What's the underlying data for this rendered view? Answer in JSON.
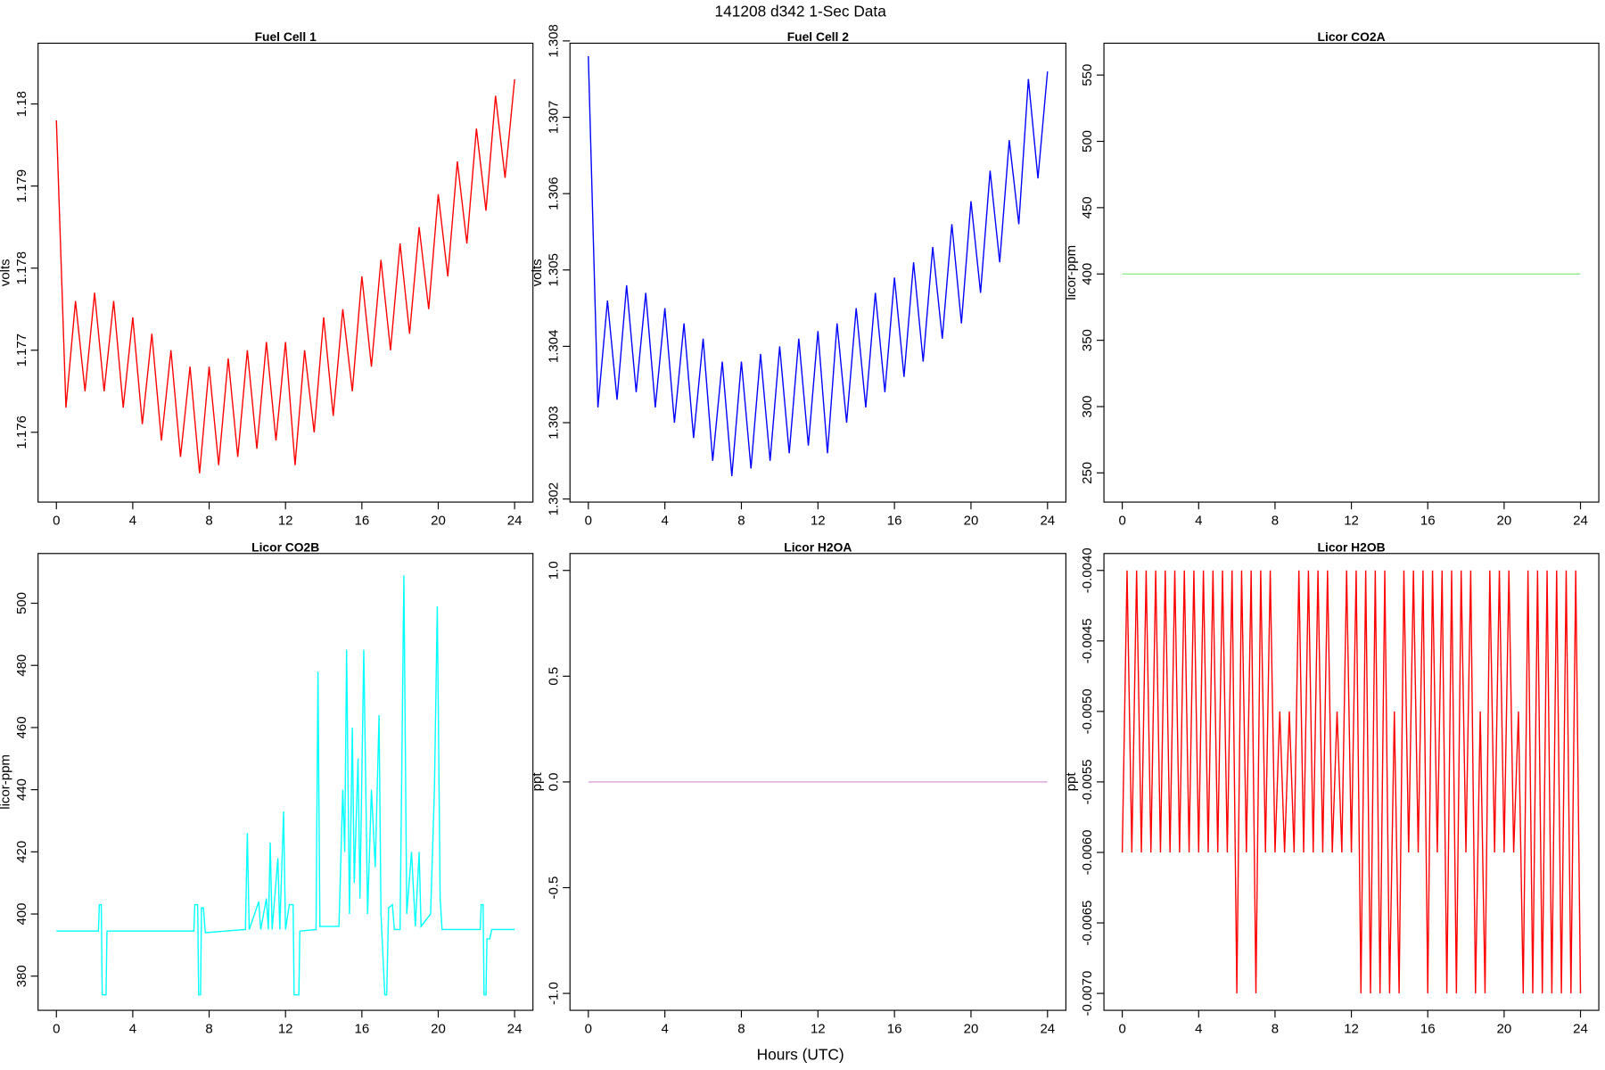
{
  "title": "141208   d342   1-Sec Data",
  "xlabel": "Hours (UTC)",
  "chart_data": [
    {
      "type": "line",
      "title": "Fuel Cell 1",
      "ylabel": "volts",
      "color": "#ff0000",
      "x": [
        0,
        0.5,
        1,
        1.5,
        2,
        2.5,
        3,
        3.5,
        4,
        4.5,
        5,
        5.5,
        6,
        6.5,
        7,
        7.5,
        8,
        8.5,
        9,
        9.5,
        10,
        10.5,
        11,
        11.5,
        12,
        12.5,
        13,
        13.5,
        14,
        14.5,
        15,
        15.5,
        16,
        16.5,
        17,
        17.5,
        18,
        18.5,
        19,
        19.5,
        20,
        20.5,
        21,
        21.5,
        22,
        22.5,
        23,
        23.5,
        24
      ],
      "values": [
        1.1798,
        1.1763,
        1.1776,
        1.1765,
        1.1777,
        1.1765,
        1.1776,
        1.1763,
        1.1774,
        1.1761,
        1.1772,
        1.1759,
        1.177,
        1.1757,
        1.1768,
        1.1755,
        1.1768,
        1.1756,
        1.1769,
        1.1757,
        1.177,
        1.1758,
        1.1771,
        1.1759,
        1.1771,
        1.1756,
        1.177,
        1.176,
        1.1774,
        1.1762,
        1.1775,
        1.1765,
        1.1779,
        1.1768,
        1.1781,
        1.177,
        1.1783,
        1.1772,
        1.1785,
        1.1775,
        1.1789,
        1.1779,
        1.1793,
        1.1783,
        1.1797,
        1.1787,
        1.1801,
        1.1791,
        1.1803
      ],
      "xlim": [
        -0.96,
        24.96
      ],
      "xticks": [
        0,
        4,
        8,
        12,
        16,
        20,
        24
      ],
      "ylim": [
        1.17515,
        1.18074
      ],
      "yticks": [
        1.176,
        1.177,
        1.178,
        1.179,
        1.18
      ]
    },
    {
      "type": "line",
      "title": "Fuel Cell 2",
      "ylabel": "volts",
      "color": "#0000ff",
      "x": [
        0,
        0.5,
        1,
        1.5,
        2,
        2.5,
        3,
        3.5,
        4,
        4.5,
        5,
        5.5,
        6,
        6.5,
        7,
        7.5,
        8,
        8.5,
        9,
        9.5,
        10,
        10.5,
        11,
        11.5,
        12,
        12.5,
        13,
        13.5,
        14,
        14.5,
        15,
        15.5,
        16,
        16.5,
        17,
        17.5,
        18,
        18.5,
        19,
        19.5,
        20,
        20.5,
        21,
        21.5,
        22,
        22.5,
        23,
        23.5,
        24
      ],
      "values": [
        1.3078,
        1.3032,
        1.3046,
        1.3033,
        1.3048,
        1.3034,
        1.3047,
        1.3032,
        1.3045,
        1.303,
        1.3043,
        1.3028,
        1.3041,
        1.3025,
        1.3038,
        1.3023,
        1.3038,
        1.3024,
        1.3039,
        1.3025,
        1.304,
        1.3026,
        1.3041,
        1.3027,
        1.3042,
        1.3026,
        1.3043,
        1.303,
        1.3045,
        1.3032,
        1.3047,
        1.3034,
        1.3049,
        1.3036,
        1.3051,
        1.3038,
        1.3053,
        1.3041,
        1.3056,
        1.3043,
        1.3059,
        1.3047,
        1.3063,
        1.3051,
        1.3067,
        1.3056,
        1.3075,
        1.3062,
        1.3076
      ],
      "xlim": [
        -0.96,
        24.96
      ],
      "xticks": [
        0,
        4,
        8,
        12,
        16,
        20,
        24
      ],
      "ylim": [
        1.30196,
        1.30797
      ],
      "yticks": [
        1.302,
        1.303,
        1.304,
        1.305,
        1.306,
        1.307,
        1.308
      ]
    },
    {
      "type": "line",
      "title": "Licor CO2A",
      "ylabel": "licor-ppm",
      "color": "#90ee90",
      "x": [
        0,
        24
      ],
      "values": [
        400,
        400
      ],
      "xlim": [
        -0.96,
        24.96
      ],
      "xticks": [
        0,
        4,
        8,
        12,
        16,
        20,
        24
      ],
      "ylim": [
        228,
        574
      ],
      "yticks": [
        250,
        300,
        350,
        400,
        450,
        500,
        550
      ]
    },
    {
      "type": "line",
      "title": "Licor CO2B",
      "ylabel": "licor-ppm",
      "color": "#00ffff",
      "x": [
        0,
        2.2,
        2.25,
        2.35,
        2.4,
        2.6,
        2.65,
        7.2,
        7.25,
        7.4,
        7.45,
        7.55,
        7.6,
        7.7,
        7.8,
        9.9,
        10,
        10.1,
        10.6,
        10.7,
        11,
        11.1,
        11.2,
        11.3,
        11.6,
        11.7,
        11.9,
        12,
        12.2,
        12.4,
        12.45,
        12.7,
        12.75,
        13.6,
        13.7,
        13.8,
        14.8,
        15,
        15.1,
        15.2,
        15.35,
        15.5,
        15.6,
        15.8,
        15.9,
        16.1,
        16.3,
        16.5,
        16.7,
        16.9,
        17,
        17.2,
        17.3,
        17.4,
        17.6,
        17.7,
        18,
        18.2,
        18.35,
        18.6,
        18.8,
        19,
        19.1,
        19.6,
        19.8,
        19.95,
        20.1,
        20.2,
        22.2,
        22.25,
        22.35,
        22.4,
        22.5,
        22.55,
        22.7,
        22.8,
        24
      ],
      "values": [
        394.5,
        394.5,
        403,
        403,
        374,
        374,
        394.5,
        394.5,
        403,
        403,
        374,
        374,
        402,
        402,
        394,
        395,
        426,
        395,
        404,
        395,
        405,
        395,
        423,
        395,
        418,
        395,
        433,
        395,
        403,
        403,
        374,
        374,
        394.5,
        395,
        478,
        396,
        396,
        440,
        420,
        485,
        400,
        460,
        410,
        450,
        405,
        485,
        400,
        440,
        415,
        464,
        400,
        374,
        374,
        402,
        403,
        395,
        395,
        509,
        400,
        420,
        396,
        420,
        396,
        400,
        440,
        499,
        405,
        395,
        395,
        403,
        403,
        374,
        374,
        392,
        392,
        395,
        395
      ],
      "xlim": [
        -0.96,
        24.96
      ],
      "xticks": [
        0,
        4,
        8,
        12,
        16,
        20,
        24
      ],
      "ylim": [
        369,
        516
      ],
      "yticks": [
        380,
        400,
        420,
        440,
        460,
        480,
        500
      ]
    },
    {
      "type": "line",
      "title": "Licor H2OA",
      "ylabel": "ppt",
      "color": "#dda0dd",
      "x": [
        0,
        24
      ],
      "values": [
        0,
        0
      ],
      "xlim": [
        -0.96,
        24.96
      ],
      "xticks": [
        0,
        4,
        8,
        12,
        16,
        20,
        24
      ],
      "ylim": [
        -1.08,
        1.08
      ],
      "yticks": [
        {
          "value": -1,
          "label": "-1.0"
        },
        {
          "value": -0.5,
          "label": "-0.5"
        },
        {
          "value": 0,
          "label": "0.0"
        },
        {
          "value": 0.5,
          "label": "0.5"
        },
        {
          "value": 1,
          "label": "1.0"
        }
      ]
    },
    {
      "type": "line",
      "title": "Licor H2OB",
      "ylabel": "ppt",
      "color": "#ff0000",
      "x": [
        0,
        0.25,
        0.5,
        0.75,
        1,
        1.25,
        1.5,
        1.75,
        2,
        2.25,
        2.5,
        2.75,
        3,
        3.25,
        3.5,
        3.75,
        4,
        4.25,
        4.5,
        4.75,
        5,
        5.25,
        5.5,
        5.75,
        6,
        6.25,
        6.5,
        6.75,
        7,
        7.25,
        7.5,
        7.75,
        8,
        8.25,
        8.5,
        8.75,
        9,
        9.25,
        9.5,
        9.75,
        10,
        10.25,
        10.5,
        10.75,
        11,
        11.25,
        11.5,
        11.75,
        12,
        12.25,
        12.5,
        12.75,
        13,
        13.25,
        13.5,
        13.75,
        14,
        14.25,
        14.5,
        14.75,
        15,
        15.25,
        15.5,
        15.75,
        16,
        16.25,
        16.5,
        16.75,
        17,
        17.25,
        17.5,
        17.75,
        18,
        18.25,
        18.5,
        18.75,
        19,
        19.25,
        19.5,
        19.75,
        20,
        20.25,
        20.5,
        20.75,
        21,
        21.25,
        21.5,
        21.75,
        22,
        22.25,
        22.5,
        22.75,
        23,
        23.25,
        23.5,
        23.75,
        24
      ],
      "values": [
        -0.006,
        -0.004,
        -0.006,
        -0.004,
        -0.006,
        -0.004,
        -0.006,
        -0.004,
        -0.006,
        -0.004,
        -0.006,
        -0.004,
        -0.006,
        -0.004,
        -0.006,
        -0.004,
        -0.006,
        -0.004,
        -0.006,
        -0.004,
        -0.006,
        -0.004,
        -0.006,
        -0.004,
        -0.007,
        -0.004,
        -0.006,
        -0.004,
        -0.007,
        -0.004,
        -0.006,
        -0.004,
        -0.006,
        -0.005,
        -0.006,
        -0.005,
        -0.006,
        -0.004,
        -0.006,
        -0.004,
        -0.006,
        -0.004,
        -0.006,
        -0.004,
        -0.006,
        -0.005,
        -0.006,
        -0.004,
        -0.006,
        -0.004,
        -0.007,
        -0.004,
        -0.007,
        -0.004,
        -0.007,
        -0.004,
        -0.007,
        -0.005,
        -0.007,
        -0.004,
        -0.006,
        -0.004,
        -0.006,
        -0.004,
        -0.007,
        -0.004,
        -0.006,
        -0.004,
        -0.007,
        -0.004,
        -0.007,
        -0.004,
        -0.006,
        -0.004,
        -0.007,
        -0.005,
        -0.007,
        -0.004,
        -0.006,
        -0.004,
        -0.006,
        -0.004,
        -0.006,
        -0.005,
        -0.007,
        -0.004,
        -0.007,
        -0.004,
        -0.007,
        -0.004,
        -0.007,
        -0.004,
        -0.007,
        -0.004,
        -0.007,
        -0.004,
        -0.007
      ],
      "xlim": [
        -0.96,
        24.96
      ],
      "xticks": [
        0,
        4,
        8,
        12,
        16,
        20,
        24
      ],
      "ylim": [
        -0.00712,
        -0.00388
      ],
      "yticks": [
        {
          "value": -0.007,
          "label": "-0.0070"
        },
        {
          "value": -0.0065,
          "label": "-0.0065"
        },
        {
          "value": -0.006,
          "label": "-0.0060"
        },
        {
          "value": -0.0055,
          "label": "-0.0055"
        },
        {
          "value": -0.005,
          "label": "-0.0050"
        },
        {
          "value": -0.0045,
          "label": "-0.0045"
        },
        {
          "value": -0.004,
          "label": "-0.0040"
        }
      ]
    }
  ]
}
